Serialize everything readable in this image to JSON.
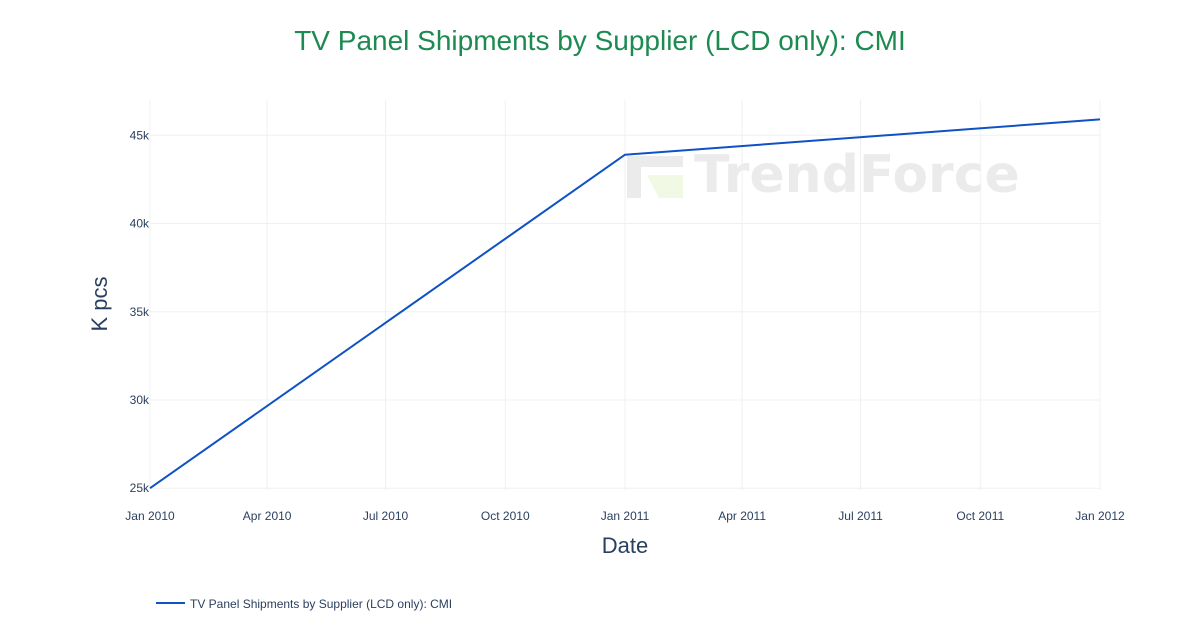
{
  "chart_data": {
    "type": "line",
    "title": "TV Panel Shipments by Supplier (LCD only): CMI",
    "xlabel": "Date",
    "ylabel": "K pcs",
    "x": [
      "2010-01-01",
      "2011-01-01",
      "2012-01-01"
    ],
    "x_tick_labels": [
      "Jan 2010",
      "Apr 2010",
      "Jul 2010",
      "Oct 2010",
      "Jan 2011",
      "Apr 2011",
      "Jul 2011",
      "Oct 2011",
      "Jan 2012"
    ],
    "x_tick_values": [
      "2010-01-01",
      "2010-04-01",
      "2010-07-01",
      "2010-10-01",
      "2011-01-01",
      "2011-04-01",
      "2011-07-01",
      "2011-10-01",
      "2012-01-01"
    ],
    "y_tick_labels": [
      "25k",
      "30k",
      "35k",
      "40k",
      "45k"
    ],
    "y_tick_values": [
      25000,
      30000,
      35000,
      40000,
      45000
    ],
    "xlim": [
      "2010-01-01",
      "2012-01-01"
    ],
    "ylim": [
      24900,
      47000
    ],
    "grid": true,
    "legend_position": "bottom-left",
    "series": [
      {
        "name": "TV Panel Shipments by Supplier (LCD only): CMI",
        "color": "#0f52c4",
        "values": [
          25000,
          43900,
          45900
        ]
      }
    ]
  },
  "watermark": {
    "text": "TrendForce"
  },
  "colors": {
    "title": "#1d8a52",
    "grid": "#eef0f4",
    "text": "#2a3f5f",
    "line": "#0f52c4"
  }
}
